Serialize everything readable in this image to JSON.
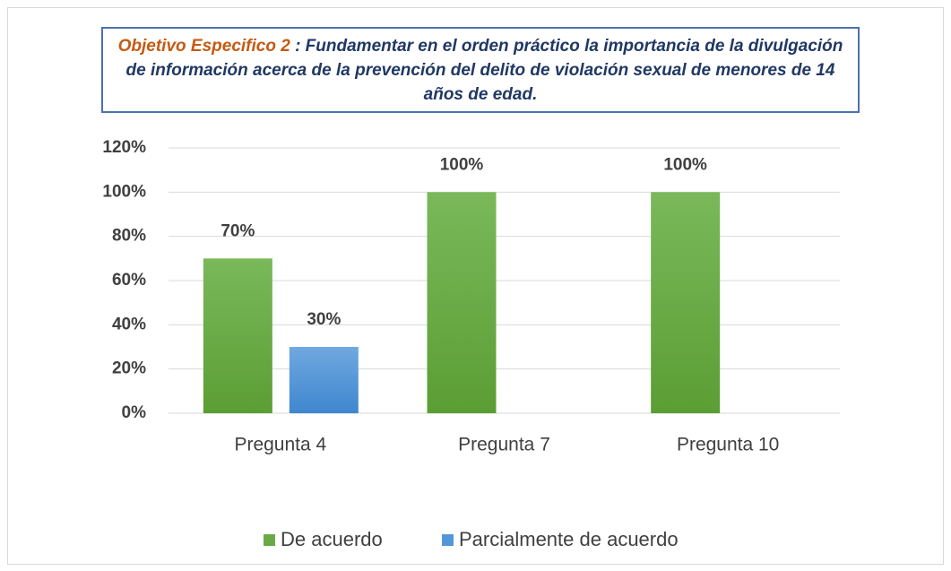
{
  "chart_data": {
    "type": "bar",
    "title": {
      "lead": "Objetivo Especifico 2",
      "text": ": Fundamentar en el orden práctico la importancia de la divulgación de información acerca de la prevención del delito de violación sexual de menores de 14 años de edad."
    },
    "categories": [
      "Pregunta 4",
      "Pregunta 7",
      "Pregunta 10"
    ],
    "series": [
      {
        "name": "De acuerdo",
        "color": "#6aaa45",
        "values": [
          70,
          100,
          100
        ],
        "value_labels": [
          "70%",
          "100%",
          "100%"
        ]
      },
      {
        "name": "Parcialmente de acuerdo",
        "color": "#5497d8",
        "values": [
          30,
          null,
          null
        ],
        "value_labels": [
          "30%",
          null,
          null
        ]
      }
    ],
    "ylim": [
      0,
      120
    ],
    "yticks": [
      {
        "value": 0,
        "label": "0%"
      },
      {
        "value": 20,
        "label": "20%"
      },
      {
        "value": 40,
        "label": "40%"
      },
      {
        "value": 60,
        "label": "60%"
      },
      {
        "value": 80,
        "label": "80%"
      },
      {
        "value": 100,
        "label": "100%"
      },
      {
        "value": 120,
        "label": "120%"
      }
    ],
    "grid": true,
    "legend": "bottom"
  }
}
